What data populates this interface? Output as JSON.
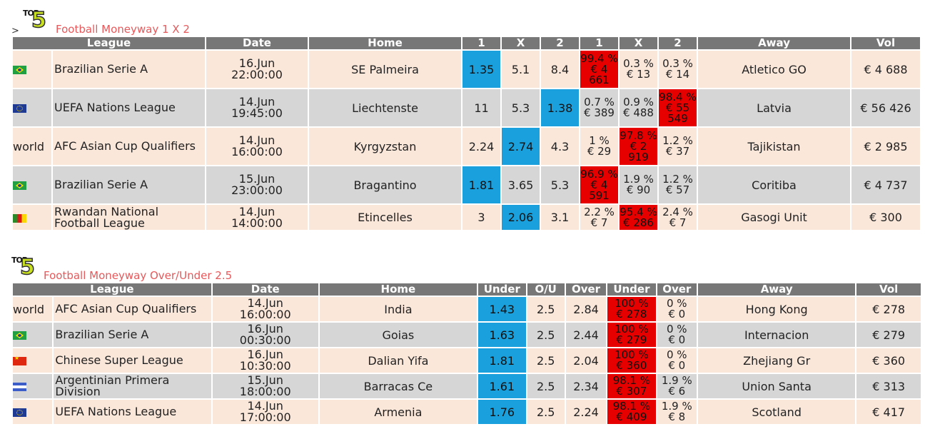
{
  "sections": [
    {
      "prefix": ">",
      "logo_top": "TOP",
      "logo_num": "5",
      "title": "Football Moneyway 1 X 2",
      "headers": [
        "League",
        "Date",
        "Home",
        "1",
        "X",
        "2",
        "1",
        "X",
        "2",
        "Away",
        "Vol"
      ],
      "rows": [
        {
          "flag": "brazil-flag",
          "league": "Brazilian Serie A",
          "date": "16.Jun",
          "time": "22:00:00",
          "home": "SE Palmeira",
          "o1": "1.35",
          "ox": "5.1",
          "o2": "8.4",
          "p1": "99.4 %",
          "v1": "€ 4 661",
          "px": "0.3 %",
          "vx": "€ 13",
          "p2": "0.3 %",
          "v2": "€ 14",
          "away": "Atletico GO",
          "vol": "€ 4 688",
          "best_odd": "o1",
          "best_pct": "p1"
        },
        {
          "flag": "eu-flag",
          "league": "UEFA Nations League",
          "date": "14.Jun",
          "time": "19:45:00",
          "home": "Liechtenste",
          "o1": "11",
          "ox": "5.3",
          "o2": "1.38",
          "p1": "0.7 %",
          "v1": "€ 389",
          "px": "0.9 %",
          "vx": "€ 488",
          "p2": "98.4 %",
          "v2": "€ 55 549",
          "away": "Latvia",
          "vol": "€ 56 426",
          "best_odd": "o2",
          "best_pct": "p2"
        },
        {
          "flag_text": "world",
          "league": "AFC Asian Cup Qualifiers",
          "date": "14.Jun",
          "time": "16:00:00",
          "home": "Kyrgyzstan",
          "o1": "2.24",
          "ox": "2.74",
          "o2": "4.3",
          "p1": "1 %",
          "v1": "€ 29",
          "px": "97.8 %",
          "vx": "€ 2 919",
          "p2": "1.2 %",
          "v2": "€ 37",
          "away": "Tajikistan",
          "vol": "€ 2 985",
          "best_odd": "ox",
          "best_pct": "px"
        },
        {
          "flag": "brazil-flag",
          "league": "Brazilian Serie A",
          "date": "15.Jun",
          "time": "23:00:00",
          "home": "Bragantino",
          "o1": "1.81",
          "ox": "3.65",
          "o2": "5.3",
          "p1": "96.9 %",
          "v1": "€ 4 591",
          "px": "1.9 %",
          "vx": "€ 90",
          "p2": "1.2 %",
          "v2": "€ 57",
          "away": "Coritiba",
          "vol": "€ 4 737",
          "best_odd": "o1",
          "best_pct": "p1"
        },
        {
          "flag": "rwanda-flag",
          "league": "Rwandan National Football League",
          "date": "14.Jun",
          "time": "14:00:00",
          "home": "Etincelles",
          "o1": "3",
          "ox": "2.06",
          "o2": "3.1",
          "p1": "2.2 %",
          "v1": "€ 7",
          "px": "95.4 %",
          "vx": "€ 286",
          "p2": "2.4 %",
          "v2": "€ 7",
          "away": "Gasogi Unit",
          "vol": "€ 300",
          "best_odd": "ox",
          "best_pct": "px"
        }
      ]
    },
    {
      "logo_top": "TOP",
      "logo_num": "5",
      "title": "Football Moneyway Over/Under 2.5",
      "headers": [
        "League",
        "Date",
        "Home",
        "Under",
        "O/U",
        "Over",
        "Under",
        "Over",
        "Away",
        "Vol"
      ],
      "rows": [
        {
          "flag_text": "world",
          "league": "AFC Asian Cup Qualifiers",
          "date": "14.Jun",
          "time": "16:00:00",
          "home": "India",
          "under": "1.43",
          "ou": "2.5",
          "over": "2.84",
          "pu": "100 %",
          "vu": "€ 278",
          "po": "0 %",
          "vo": "€ 0",
          "away": "Hong Kong",
          "vol": "€ 278"
        },
        {
          "flag": "brazil-flag",
          "league": "Brazilian Serie A",
          "date": "16.Jun",
          "time": "00:30:00",
          "home": "Goias",
          "under": "1.63",
          "ou": "2.5",
          "over": "2.44",
          "pu": "100 %",
          "vu": "€ 279",
          "po": "0 %",
          "vo": "€ 0",
          "away": "Internacion",
          "vol": "€ 279"
        },
        {
          "flag": "china-flag",
          "league": "Chinese Super League",
          "date": "16.Jun",
          "time": "10:30:00",
          "home": "Dalian Yifa",
          "under": "1.81",
          "ou": "2.5",
          "over": "2.04",
          "pu": "100 %",
          "vu": "€ 360",
          "po": "0 %",
          "vo": "€ 0",
          "away": "Zhejiang Gr",
          "vol": "€ 360"
        },
        {
          "flag": "argentina-flag",
          "league": "Argentinian Primera Division",
          "date": "15.Jun",
          "time": "18:00:00",
          "home": "Barracas Ce",
          "under": "1.61",
          "ou": "2.5",
          "over": "2.34",
          "pu": "98.1 %",
          "vu": "€ 307",
          "po": "1.9 %",
          "vo": "€ 6",
          "away": "Union Santa",
          "vol": "€ 313"
        },
        {
          "flag": "eu-flag",
          "league": "UEFA Nations League",
          "date": "14.Jun",
          "time": "17:00:00",
          "home": "Armenia",
          "under": "1.76",
          "ou": "2.5",
          "over": "2.24",
          "pu": "98.1 %",
          "vu": "€ 409",
          "po": "1.9 %",
          "vo": "€ 8",
          "away": "Scotland",
          "vol": "€ 417"
        }
      ]
    }
  ],
  "colors": {
    "header": "#777777",
    "row_odd": "#fbe7da",
    "row_even": "#d6d6d6",
    "best_odd": "#1aa0dc",
    "best_pct": "#e60000",
    "title": "#e8585a"
  }
}
